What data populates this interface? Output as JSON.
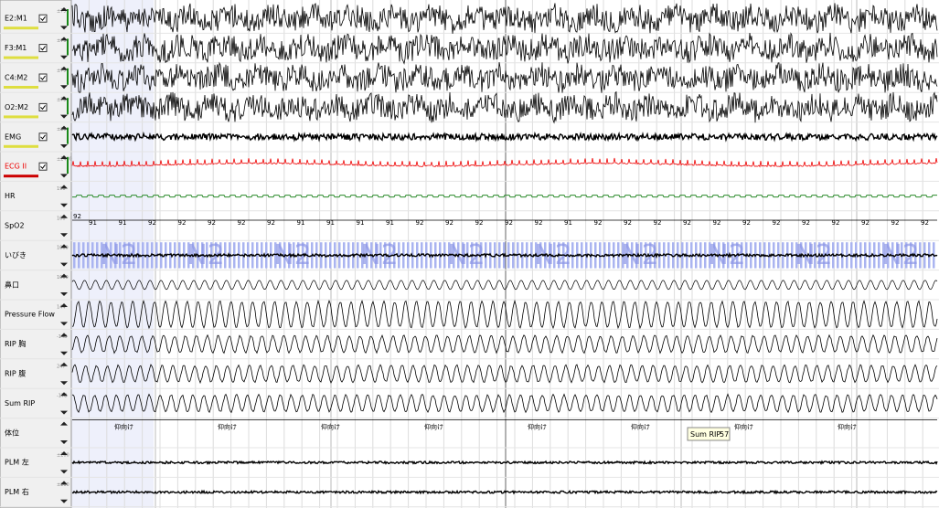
{
  "channels": [
    {
      "label": "E2:M1",
      "scale": "±75"
    },
    {
      "label": "F3:M1",
      "scale": "±75"
    },
    {
      "label": "C4:M2",
      "scale": "±75"
    },
    {
      "label": "O2:M2",
      "scale": "±75"
    },
    {
      "label": "EMG",
      "scale": "±25"
    },
    {
      "label": "ECG II",
      "scale": "±2400"
    },
    {
      "label": "HR",
      "scale": "190"
    },
    {
      "label": "SpO2",
      "scale": "100"
    },
    {
      "label": "いびき",
      "scale": "1000"
    },
    {
      "label": "鼻口",
      "scale": "1000"
    },
    {
      "label": "Pressure Flow",
      "scale": "144"
    },
    {
      "label": "RIP 胸",
      "scale": "-148"
    },
    {
      "label": "RIP 腹",
      "scale": "247"
    },
    {
      "label": "Sum RIP",
      "scale": "-178"
    },
    {
      "label": "体位",
      "scale": null
    },
    {
      "label": "PLM 左",
      "scale": "±200"
    },
    {
      "label": "PLM 右",
      "scale": "±200"
    }
  ],
  "stages": [
    "N2",
    "N2",
    "N2",
    "N2",
    "N2",
    "N2",
    "N2",
    "N2",
    "N2",
    "N2"
  ],
  "spo2_values": [
    92,
    91,
    91,
    92,
    92,
    92,
    92,
    92,
    91,
    91,
    91,
    91,
    92,
    92,
    92,
    92,
    92,
    91,
    92,
    92,
    92,
    92,
    92,
    92,
    92,
    92,
    92,
    92,
    92,
    92
  ],
  "position_labels": [
    "仰向け",
    "仰向け",
    "仰向け",
    "仰向け",
    "仰向け",
    "仰向け",
    "仰向け",
    "仰向け"
  ],
  "tooltip": {
    "label": "Sum RIP",
    "value": 57
  }
}
